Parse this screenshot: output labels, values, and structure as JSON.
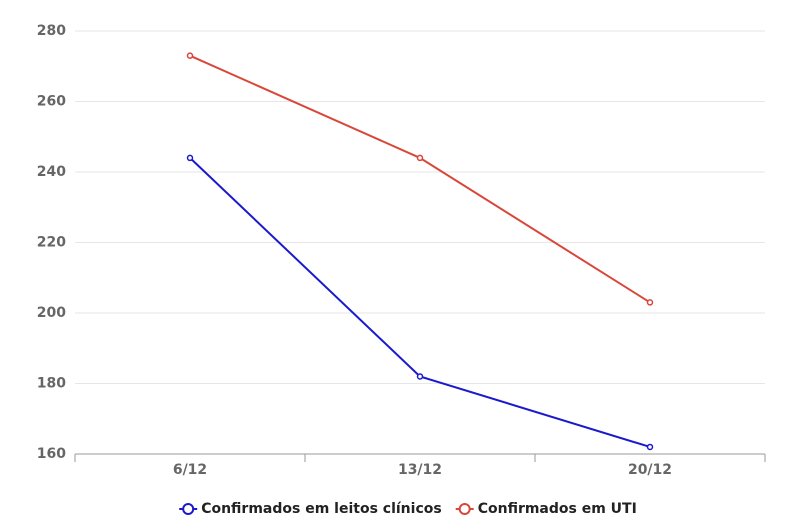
{
  "chart_data": {
    "type": "line",
    "categories": [
      "6/12",
      "13/12",
      "20/12"
    ],
    "series": [
      {
        "name": "Confirmados em leitos clínicos",
        "color": "#1a1acc",
        "values": [
          244,
          182,
          162
        ]
      },
      {
        "name": "Confirmados em UTI",
        "color": "#d9473a",
        "values": [
          273,
          244,
          203
        ]
      }
    ],
    "ylim": [
      160,
      280
    ],
    "yticks": [
      160,
      180,
      200,
      220,
      240,
      260,
      280
    ],
    "grid": true
  }
}
